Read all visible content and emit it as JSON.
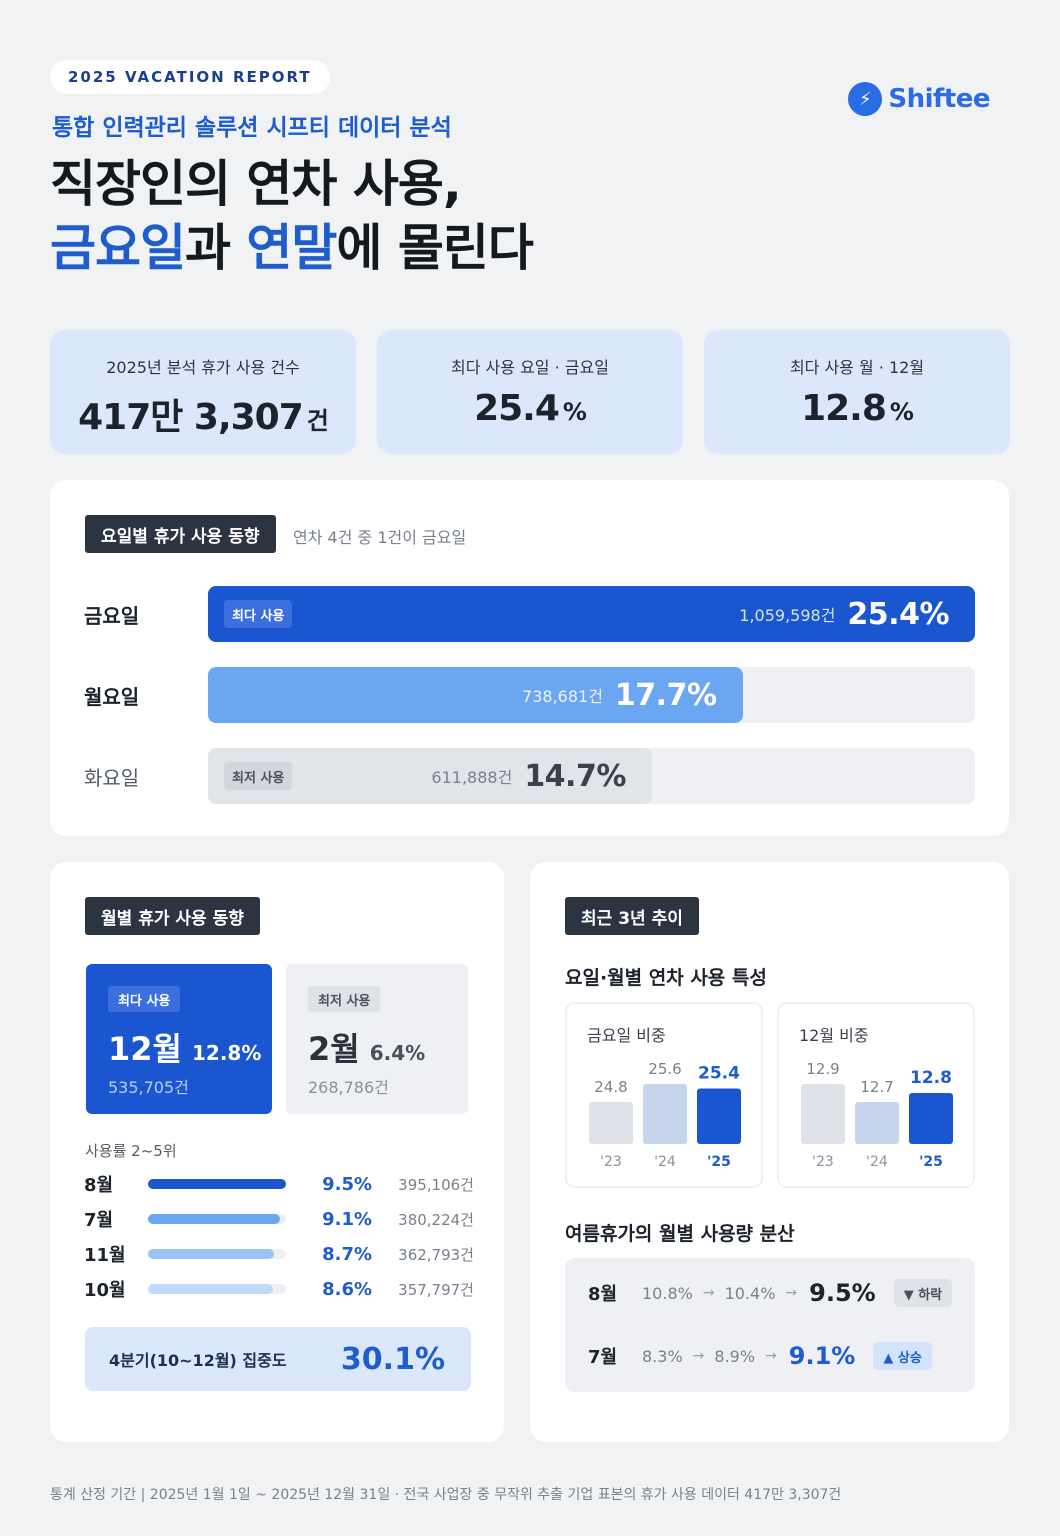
{
  "header": {
    "report_tag": "2025 VACATION REPORT",
    "subtitle": "통합 인력관리 솔루션 시프티 데이터 분석",
    "headline_line1": "직장인의 연차 사용,",
    "headline_hl1": "금요일",
    "headline_mid": "과 ",
    "headline_hl2": "연말",
    "headline_end": "에 몰린다",
    "logo_text": "Shiftee",
    "logo_icon": "lightning-bolt-icon"
  },
  "colors": {
    "accent": "#1f5ccc",
    "bar_primary": "#1a56cf",
    "bar_secondary": "#6aa6f2",
    "bar_muted": "#e1e4e9",
    "card_bg": "#dbe7fb"
  },
  "stats": [
    {
      "label": "2025년 분석 휴가 사용 건수",
      "value": "417만 3,307",
      "unit": "건"
    },
    {
      "label": "최다 사용 요일 · 금요일",
      "value": "25.4",
      "unit": "%"
    },
    {
      "label": "최다 사용 월 · 12월",
      "value": "12.8",
      "unit": "%"
    }
  ],
  "weekday": {
    "tag": "요일별 휴가 사용 동향",
    "note": "연차 4건 중 1건이 금요일",
    "rows": [
      {
        "day": "금요일",
        "chip": "최다 사용",
        "count": "1,059,598건",
        "pct": "25.4%",
        "value": 25.4
      },
      {
        "day": "월요일",
        "chip": "",
        "count": "738,681건",
        "pct": "17.7%",
        "value": 17.7
      },
      {
        "day": "화요일",
        "chip": "최저 사용",
        "count": "611,888건",
        "pct": "14.7%",
        "value": 14.7
      }
    ]
  },
  "monthly": {
    "tag": "월별 휴가 사용 동향",
    "max": {
      "chip": "최다 사용",
      "month": "12월",
      "pct": "12.8%",
      "count": "535,705건"
    },
    "min": {
      "chip": "최저 사용",
      "month": "2월",
      "pct": "6.4%",
      "count": "268,786건"
    },
    "rank_title": "사용률 2~5위",
    "ranks": [
      {
        "month": "8월",
        "pct": "9.5%",
        "value": 9.5,
        "count": "395,106건"
      },
      {
        "month": "7월",
        "pct": "9.1%",
        "value": 9.1,
        "count": "380,224건"
      },
      {
        "month": "11월",
        "pct": "8.7%",
        "value": 8.7,
        "count": "362,793건"
      },
      {
        "month": "10월",
        "pct": "8.6%",
        "value": 8.6,
        "count": "357,797건"
      }
    ],
    "q4_label": "4분기(10~12월) 집중도",
    "q4_value": "30.1%"
  },
  "trend": {
    "tag": "최근 3년 추이",
    "section1_title": "요일·월별 연차 사용 특성",
    "friday": {
      "title": "금요일 비중",
      "years": [
        "'23",
        "'24",
        "'25"
      ],
      "values": [
        24.8,
        25.6,
        25.4
      ],
      "labels": [
        "24.8",
        "25.6",
        "25.4"
      ]
    },
    "december": {
      "title": "12월 비중",
      "years": [
        "'23",
        "'24",
        "'25"
      ],
      "values": [
        12.9,
        12.7,
        12.8
      ],
      "labels": [
        "12.9",
        "12.7",
        "12.8"
      ]
    },
    "section2_title": "여름휴가의 월별 사용량 분산",
    "summer": [
      {
        "month": "8월",
        "v1": "10.8%",
        "v2": "10.4%",
        "final": "9.5%",
        "badge": "▼ 하락"
      },
      {
        "month": "7월",
        "v1": "8.3%",
        "v2": "8.9%",
        "final": "9.1%",
        "badge": "▲ 상승"
      }
    ]
  },
  "footnote": "통계 산정 기간 | 2025년 1월 1일 ~ 2025년 12월 31일 · 전국 사업장 중 무작위 추출 기업 표본의 휴가 사용 데이터 417만 3,307건"
}
